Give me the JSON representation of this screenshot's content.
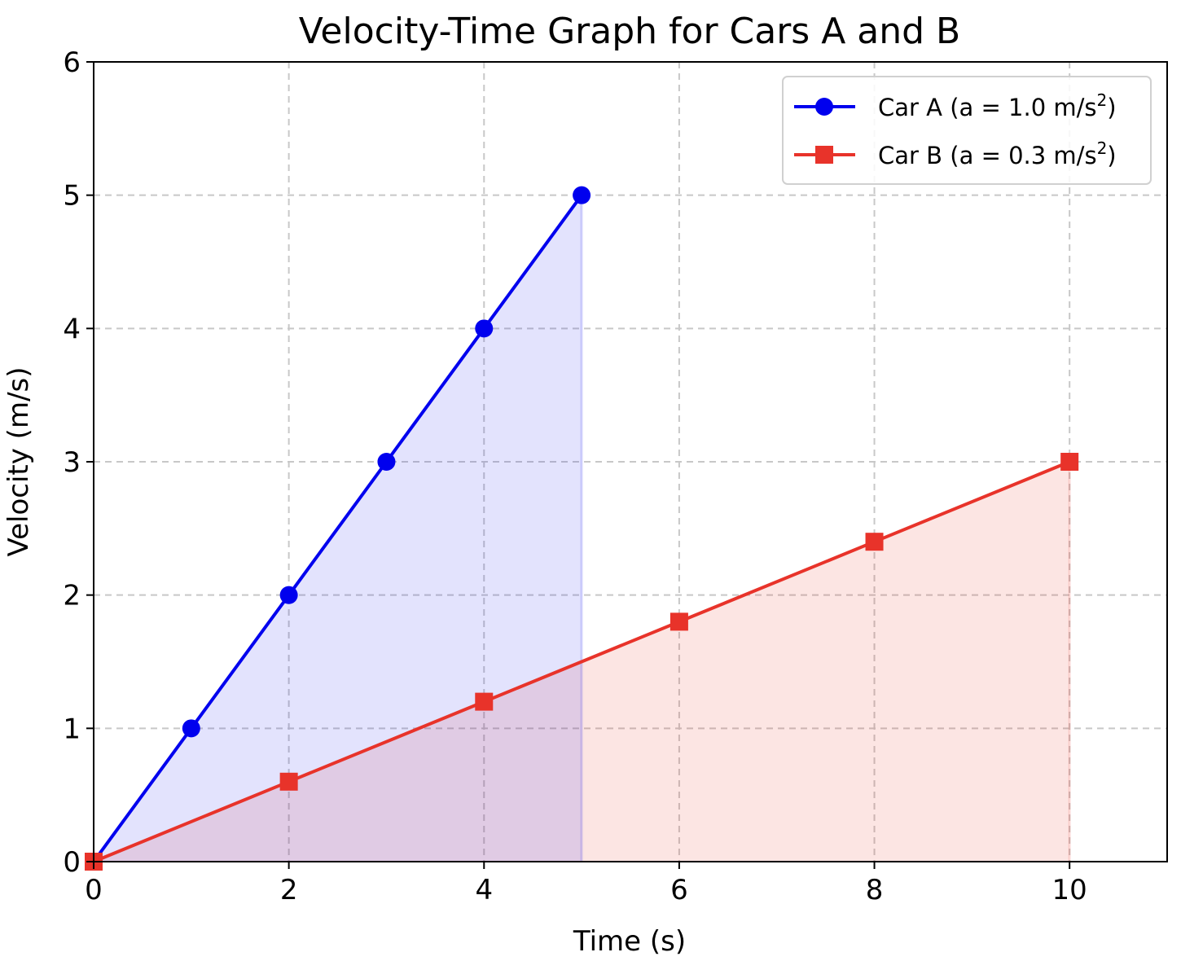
{
  "chart_data": {
    "type": "line",
    "title": "Velocity-Time Graph for Cars A and B",
    "xlabel": "Time (s)",
    "ylabel": "Velocity (m/s)",
    "xlim": [
      0,
      11
    ],
    "ylim": [
      0,
      6
    ],
    "xticks": [
      0,
      2,
      4,
      6,
      8,
      10
    ],
    "yticks": [
      0,
      1,
      2,
      3,
      4,
      5,
      6
    ],
    "grid": true,
    "legend_position": "top-right",
    "series": [
      {
        "name_main": "Car A (a = 1.0 m/s",
        "name_sup": "2",
        "name_end": ")",
        "color": "#0000ee",
        "fill": "#e3e3fb",
        "marker": "circle",
        "x": [
          0,
          1,
          2,
          3,
          4,
          5
        ],
        "y": [
          0,
          1,
          2,
          3,
          4,
          5
        ]
      },
      {
        "name_main": "Car B (a = 0.3 m/s",
        "name_sup": "2",
        "name_end": ")",
        "color": "#e8332a",
        "fill": "#f6dada",
        "marker": "square",
        "x": [
          0,
          2,
          4,
          6,
          8,
          10
        ],
        "y": [
          0,
          0.6,
          1.2,
          1.8,
          2.4,
          3.0
        ]
      }
    ]
  }
}
